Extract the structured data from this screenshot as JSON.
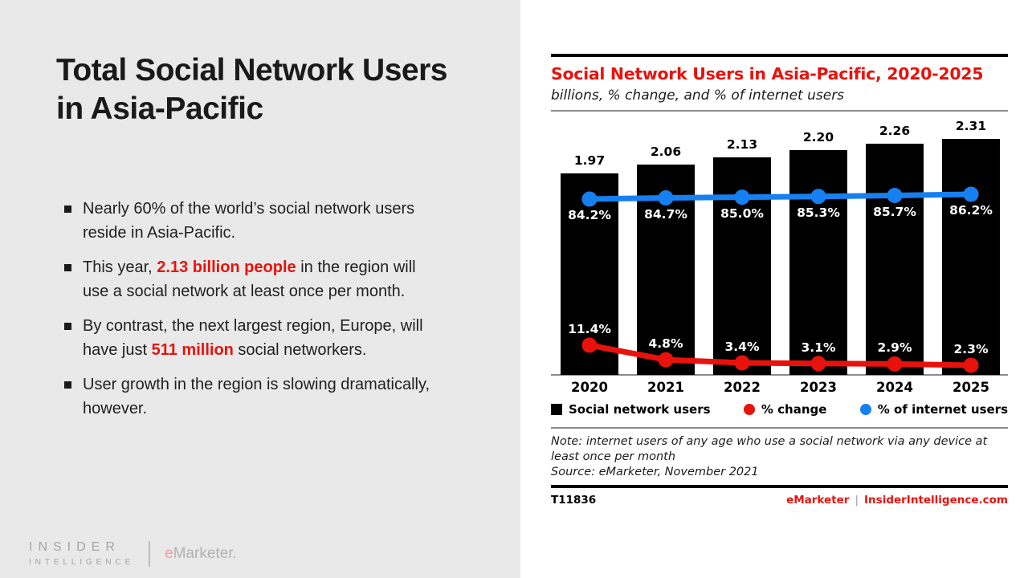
{
  "slide": {
    "title": "Total Social Network Users in Asia-Pacific",
    "bullets": [
      {
        "pre": "Nearly 60% of the world’s social network users reside in Asia-Pacific.",
        "highlight": "",
        "post": ""
      },
      {
        "pre": "This year, ",
        "highlight": "2.13 billion people",
        "post": " in the region will use a social network at least once per month."
      },
      {
        "pre": "By contrast, the next largest region, Europe, will have just ",
        "highlight": "511 million",
        "post": " social networkers."
      },
      {
        "pre": "User growth in the region is slowing dramatically, however.",
        "highlight": "",
        "post": ""
      }
    ],
    "logo": {
      "line1": "INSIDER",
      "line2": "INTELLIGENCE",
      "brand_e": "e",
      "brand_rest": "Marketer."
    }
  },
  "chart": {
    "title": "Social Network Users in Asia-Pacific, 2020-2025",
    "subtitle": "billions, % change, and % of internet users",
    "legend": [
      {
        "label": "Social network users",
        "marker": "square",
        "color": "#000000"
      },
      {
        "label": "% change",
        "marker": "circle",
        "color": "#e8120c"
      },
      {
        "label": "% of internet users",
        "marker": "circle",
        "color": "#1680f0"
      }
    ],
    "note_line1": "Note: internet users of any age who use a social network via any device at least once per month",
    "note_line2": "Source: eMarketer, November 2021",
    "footer_left": "T11836",
    "footer_brand": "eMarketer",
    "footer_sep": "|",
    "footer_right": "InsiderIntelligence.com"
  },
  "chart_data": {
    "type": "bar",
    "categories": [
      "2020",
      "2021",
      "2022",
      "2023",
      "2024",
      "2025"
    ],
    "series": [
      {
        "name": "Social network users",
        "type": "bar",
        "color": "#000000",
        "values": [
          1.97,
          2.06,
          2.13,
          2.2,
          2.26,
          2.31
        ],
        "value_labels": [
          "1.97",
          "2.06",
          "2.13",
          "2.20",
          "2.26",
          "2.31"
        ]
      },
      {
        "name": "% change",
        "type": "line",
        "color": "#e8120c",
        "values": [
          11.4,
          4.8,
          3.4,
          3.1,
          2.9,
          2.3
        ],
        "value_labels": [
          "11.4%",
          "4.8%",
          "3.4%",
          "3.1%",
          "2.9%",
          "2.3%"
        ]
      },
      {
        "name": "% of internet users",
        "type": "line",
        "color": "#1680f0",
        "values": [
          84.2,
          84.7,
          85.0,
          85.3,
          85.7,
          86.2
        ],
        "value_labels": [
          "84.2%",
          "84.7%",
          "85.0%",
          "85.3%",
          "85.7%",
          "86.2%"
        ]
      }
    ],
    "title": "Social Network Users in Asia-Pacific, 2020-2025",
    "subtitle": "billions, % change, and % of internet users",
    "ylim_bars": [
      0,
      2.31
    ],
    "grid": false,
    "legend_position": "bottom"
  }
}
